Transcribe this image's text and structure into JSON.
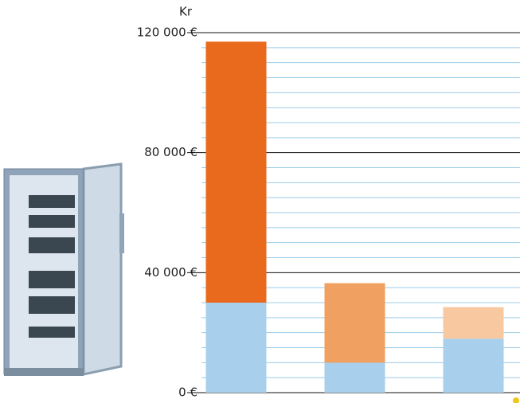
{
  "chart_data": {
    "type": "stacked_bar",
    "y_axis_label": "Kr",
    "categories": [
      null,
      null,
      null
    ],
    "series": [
      {
        "color": "#a8cfeb",
        "values": [
          30000,
          10000,
          18000
        ]
      },
      {
        "colors": [
          "#e96a1c",
          "#f0a060",
          "#f8c8a0"
        ],
        "values": [
          87000,
          26500,
          10500
        ]
      }
    ],
    "ylim": [
      0,
      120000
    ],
    "yticks": [
      {
        "value": 0,
        "label": "0 €"
      },
      {
        "value": 40000,
        "label": "40 000 €"
      },
      {
        "value": 80000,
        "label": "80 000 €"
      },
      {
        "value": 120000,
        "label": "120 000 €"
      }
    ],
    "minor_yticks": [
      5000,
      10000,
      15000,
      20000,
      25000,
      30000,
      35000,
      45000,
      50000,
      55000,
      60000,
      65000,
      70000,
      75000,
      85000,
      90000,
      95000,
      100000,
      105000,
      110000,
      115000
    ],
    "grid": true
  }
}
